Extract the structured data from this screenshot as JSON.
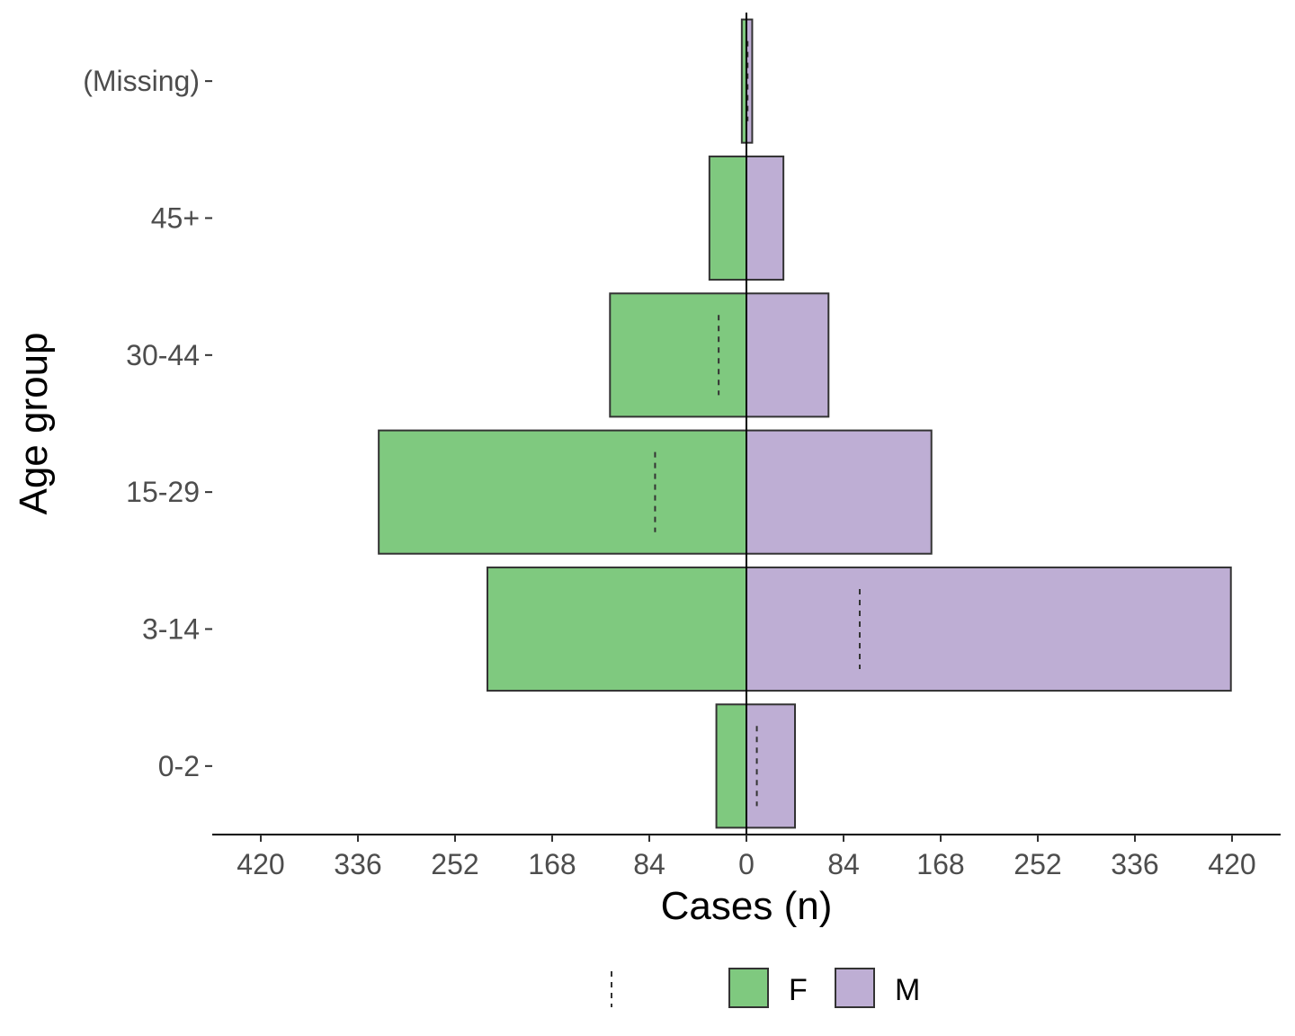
{
  "chart_data": {
    "type": "bar",
    "orientation": "horizontal",
    "subtype": "population-pyramid",
    "title": "",
    "xlabel": "Cases (n)",
    "ylabel": "Age group",
    "categories": [
      "0-2",
      "3-14",
      "15-29",
      "30-44",
      "45+",
      "(Missing)"
    ],
    "x_ticks": [
      -420,
      -336,
      -252,
      -168,
      -84,
      0,
      84,
      168,
      252,
      336,
      420
    ],
    "x_tick_labels": [
      "420",
      "336",
      "252",
      "168",
      "84",
      "0",
      "84",
      "168",
      "252",
      "336",
      "420"
    ],
    "xlim": [
      -462,
      462
    ],
    "series": [
      {
        "name": "F",
        "color": "#7fc97f",
        "side": "left",
        "values": [
          26,
          224,
          318,
          118,
          32,
          4
        ]
      },
      {
        "name": "M",
        "color": "#beaed4",
        "side": "right",
        "values": [
          42,
          419,
          160,
          71,
          32,
          5
        ]
      }
    ],
    "reference_marks": {
      "style": "dashed",
      "note_values_signed": [
        9,
        98,
        -79,
        -24,
        null,
        1
      ]
    },
    "grid": false,
    "legend_position": "bottom",
    "legend": {
      "items": [
        "F",
        "M"
      ]
    }
  }
}
